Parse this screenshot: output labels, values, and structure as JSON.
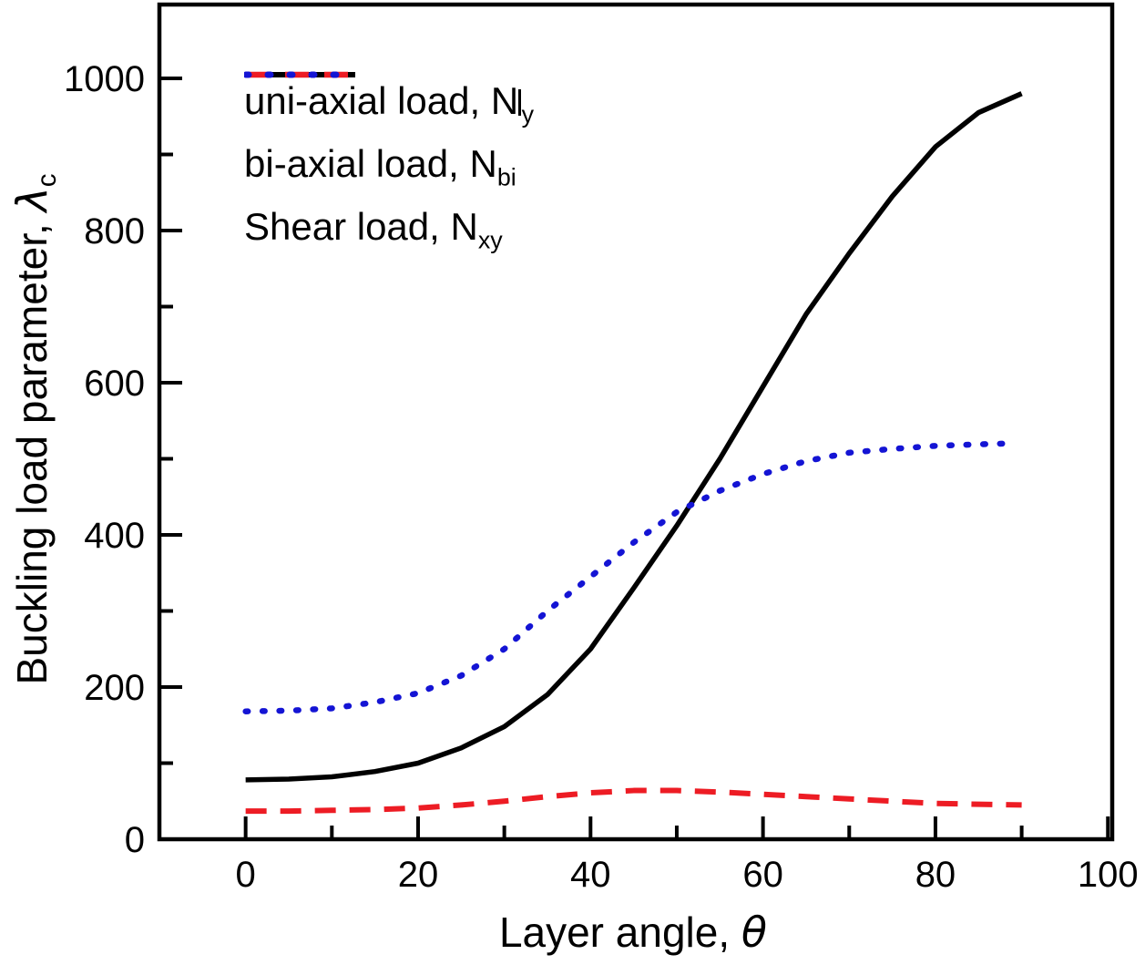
{
  "figure": {
    "background": "#ffffff",
    "border_color": "#000000"
  },
  "chart_data": {
    "type": "line",
    "title": "",
    "xlabel_main": "Layer angle, ",
    "xlabel_symbol": "θ",
    "ylabel_main": "Buckling load parameter, ",
    "ylabel_symbol": "λ",
    "ylabel_sub": "c",
    "xlim": [
      -10,
      100.5
    ],
    "ylim": [
      0,
      1097
    ],
    "x_ticks": [
      0,
      20,
      40,
      60,
      80,
      100
    ],
    "x_minor_ticks": [
      10,
      30,
      50,
      70,
      90
    ],
    "y_ticks": [
      0,
      200,
      400,
      600,
      800,
      1000
    ],
    "y_minor_ticks": [
      100,
      300,
      500,
      700,
      900
    ],
    "grid": false,
    "legend_position": "top-left-inside",
    "series": [
      {
        "name": "uni-axial",
        "label_main": "uni-axial load, N",
        "label_bar": "|",
        "label_sub": "y",
        "color": "#000000",
        "style": "solid",
        "stroke_width": 5.5,
        "x": [
          0,
          5,
          10,
          15,
          20,
          25,
          30,
          35,
          40,
          45,
          50,
          55,
          60,
          65,
          70,
          75,
          80,
          85,
          90
        ],
        "y": [
          78,
          79,
          82,
          89,
          100,
          120,
          148,
          190,
          250,
          330,
          412,
          500,
          595,
          690,
          770,
          845,
          910,
          955,
          980
        ]
      },
      {
        "name": "bi-axial",
        "label_main": "bi-axial load, N",
        "label_bar": "",
        "label_sub": "bi",
        "color": "#ed1c24",
        "style": "dashed",
        "stroke_width": 6,
        "x": [
          0,
          5,
          10,
          15,
          20,
          25,
          30,
          35,
          40,
          45,
          50,
          55,
          60,
          65,
          70,
          75,
          80,
          85,
          90
        ],
        "y": [
          37,
          37,
          38,
          39,
          41,
          45,
          50,
          56,
          61,
          64,
          64,
          62,
          59,
          56,
          53,
          50,
          47,
          46,
          45
        ]
      },
      {
        "name": "shear",
        "label_main": "Shear load, N",
        "label_bar": "",
        "label_sub": "xy",
        "color": "#1414d4",
        "style": "dotted",
        "stroke_width": 6.5,
        "x": [
          0,
          5,
          10,
          15,
          20,
          25,
          30,
          35,
          40,
          45,
          50,
          55,
          60,
          65,
          70,
          75,
          80,
          85,
          88
        ],
        "y": [
          168,
          169,
          172,
          180,
          192,
          215,
          250,
          300,
          345,
          390,
          430,
          458,
          480,
          497,
          508,
          513,
          517,
          519,
          520
        ]
      }
    ]
  }
}
